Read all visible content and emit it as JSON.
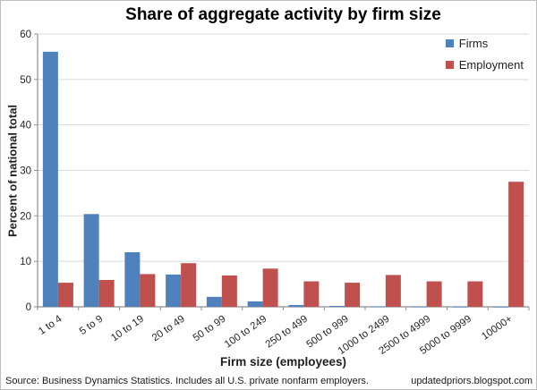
{
  "chart_data": {
    "type": "bar",
    "title": "Share of aggregate activity by firm size",
    "xlabel": "Firm size (employees)",
    "ylabel": "Percent of national total",
    "categories": [
      "1 to 4",
      "5 to 9",
      "10 to 19",
      "20 to 49",
      "50 to 99",
      "100 to 249",
      "250 to 499",
      "500 to 999",
      "1000 to 2499",
      "2500 to 4999",
      "5000 to 9999",
      "10000+"
    ],
    "series": [
      {
        "name": "Firms",
        "color": "#4F81BD",
        "values": [
          56.1,
          20.4,
          12.0,
          7.1,
          2.2,
          1.2,
          0.4,
          0.2,
          0.1,
          0.05,
          0.03,
          0.02
        ]
      },
      {
        "name": "Employment",
        "color": "#C0504D",
        "values": [
          5.3,
          5.9,
          7.2,
          9.6,
          6.9,
          8.4,
          5.6,
          5.3,
          7.0,
          5.6,
          5.6,
          27.5
        ]
      }
    ],
    "ylim": [
      0,
      60
    ],
    "yticks": [
      0,
      10,
      20,
      30,
      40,
      50,
      60
    ],
    "grid": true,
    "legend_position": "top-right",
    "colors": {
      "grid": "#d9d9d9",
      "axis": "#8e8e8e",
      "text": "#262626"
    }
  },
  "footer": {
    "source": "Source: Business Dynamics Statistics. Includes all U.S. private nonfarm employers.",
    "site": "updatedpriors.blogspot.com"
  }
}
